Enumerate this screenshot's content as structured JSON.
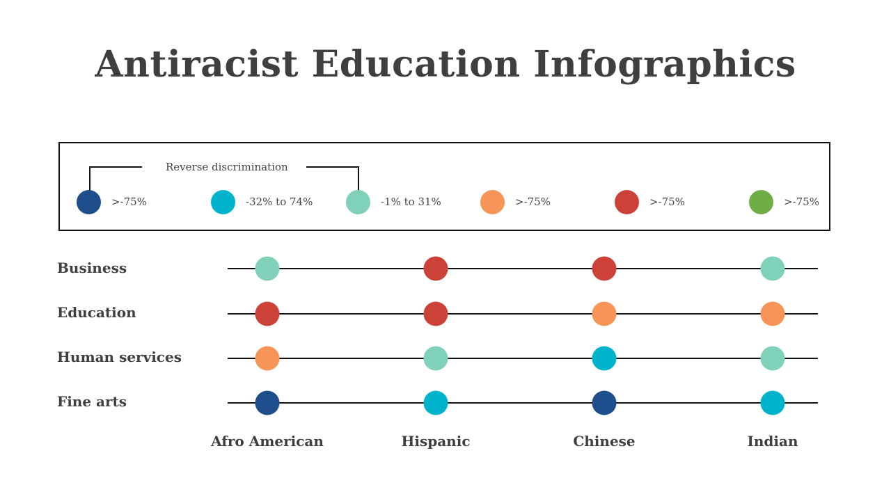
{
  "title": "Antiracist Education Infographics",
  "legend": {
    "heading": "Reverse discrimination",
    "items": [
      {
        "label": ">-75%",
        "color": "#1f4e8c",
        "key": "navy"
      },
      {
        "label": "-32% to 74%",
        "color": "#00b3cc",
        "key": "cyan"
      },
      {
        "label": "-1% to 31%",
        "color": "#7fd1b9",
        "key": "mint"
      },
      {
        "label": ">-75%",
        "color": "#f79457",
        "key": "orange"
      },
      {
        "label": ">-75%",
        "color": "#cc4138",
        "key": "red"
      },
      {
        "label": ">-75%",
        "color": "#6fae45",
        "key": "green"
      }
    ]
  },
  "chart_data": {
    "type": "dot-matrix",
    "title": "Antiracist Education Infographics",
    "rows": [
      "Business",
      "Education",
      "Human services",
      "Fine arts"
    ],
    "columns": [
      "Afro American",
      "Hispanic",
      "Chinese",
      "Indian"
    ],
    "values": [
      [
        "mint",
        "red",
        "red",
        "mint"
      ],
      [
        "red",
        "red",
        "orange",
        "orange"
      ],
      [
        "orange",
        "mint",
        "cyan",
        "mint"
      ],
      [
        "navy",
        "cyan",
        "navy",
        "cyan"
      ]
    ],
    "colors": {
      "navy": "#1f4e8c",
      "cyan": "#00b3cc",
      "mint": "#7fd1b9",
      "orange": "#f79457",
      "red": "#cc4138",
      "green": "#6fae45"
    }
  }
}
